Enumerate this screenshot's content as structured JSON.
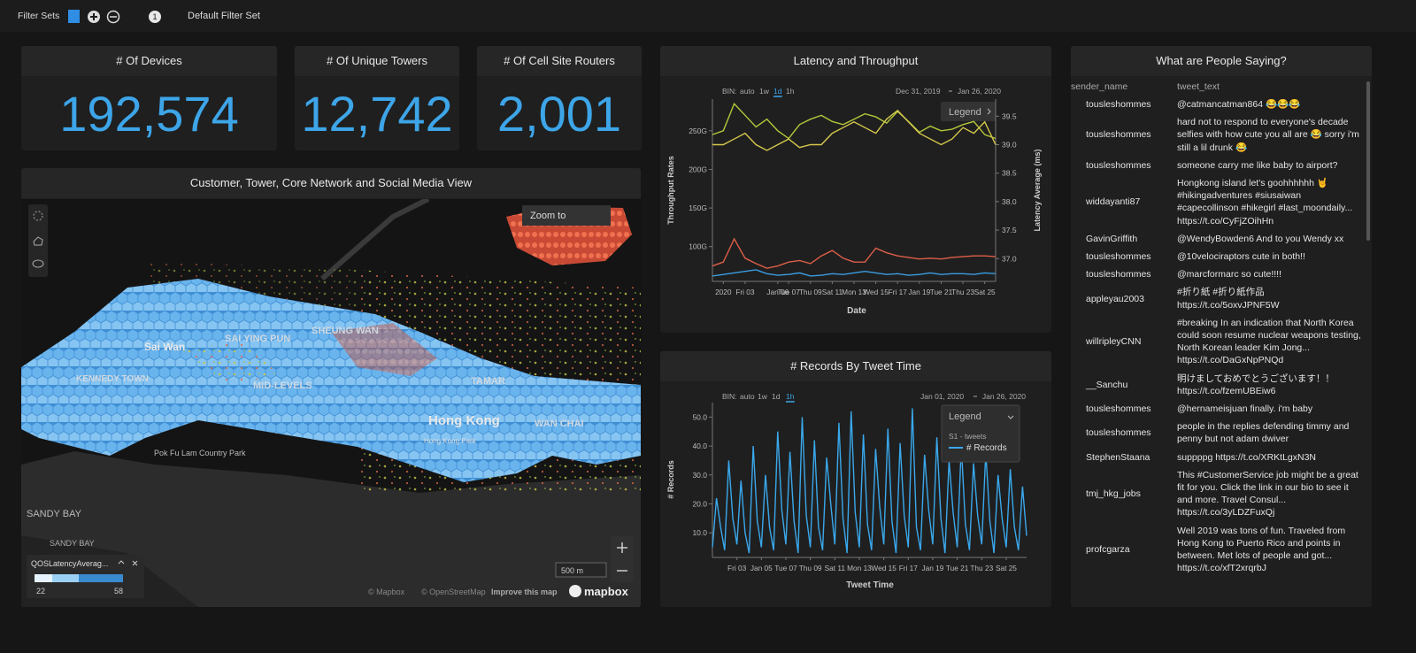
{
  "filter_bar": {
    "label": "Filter Sets",
    "badge": "1",
    "filter_set": "Default Filter Set"
  },
  "kpis": [
    {
      "title": "# Of Devices",
      "value": "192,574"
    },
    {
      "title": "# Of Unique Towers",
      "value": "12,742"
    },
    {
      "title": "# Of Cell Site Routers",
      "value": "2,001"
    }
  ],
  "map": {
    "title": "Customer, Tower, Core Network and Social Media View",
    "zoom_button": "Zoom to",
    "places": [
      "Sai Wan",
      "SAI YING PUN",
      "SHEUNG WAN",
      "MID-LEVELS",
      "Hong Kong",
      "WAN CHAI",
      "TAMAR",
      "KENNEDY TOWN",
      "SANDY BAY",
      "SANDY BAY",
      "Pok Fu Lam Country Park",
      "Hong Kong Park"
    ],
    "legend": {
      "title": "QOSLatencyAverag...",
      "min": "22",
      "max": "58"
    },
    "scale": "500 m",
    "attribution": [
      "© Mapbox",
      "© OpenStreetMap",
      "Improve this map"
    ],
    "logo": "mapbox"
  },
  "latency_chart": {
    "type": "line",
    "title": "Latency and Throughput",
    "bin_label": "BIN:",
    "bins": [
      "auto",
      "1w",
      "1d",
      "1h"
    ],
    "active_bin": "1d",
    "date_range": [
      "Dec 31, 2019",
      "Jan 26, 2020"
    ],
    "legend_title": "Legend",
    "x_label": "Date",
    "y_label": "Throughput Rates",
    "y2_label": "Latency Average (ms)",
    "categories": [
      null,
      "2020",
      null,
      "Fri 03",
      null,
      null,
      "Jan 06",
      "Tue 07",
      null,
      "Thu 09",
      null,
      "Sat 11",
      null,
      "Mon 13",
      null,
      "Wed 15",
      null,
      "Fri 17",
      null,
      "Jan 19",
      null,
      "Tue 21",
      null,
      "Thu 23",
      null,
      "Sat 25",
      null
    ],
    "ylim": [
      55,
      291
    ],
    "yticks": [
      {
        "value": 100,
        "label": "100G"
      },
      {
        "value": 150,
        "label": "150G"
      },
      {
        "value": 200,
        "label": "200G"
      },
      {
        "value": 250,
        "label": "250G"
      }
    ],
    "y2lim": [
      36.6,
      39.8
    ],
    "y2ticks": [
      {
        "value": 37,
        "label": "37.0"
      },
      37.5,
      {
        "value": 38,
        "label": "38.0"
      },
      38.5,
      {
        "value": 39,
        "label": "39.0"
      },
      39.5
    ],
    "series": [
      {
        "color": "#b3c83a",
        "values": [
          245,
          250,
          285,
          270,
          255,
          265,
          250,
          240,
          258,
          265,
          270,
          262,
          258,
          265,
          272,
          268,
          260,
          275,
          262,
          248,
          256,
          250,
          252,
          258,
          262,
          245,
          240
        ]
      },
      {
        "color": "#d6c84c",
        "axis": "y2",
        "values": [
          39.0,
          39.0,
          39.1,
          39.2,
          39.0,
          38.9,
          39.0,
          39.1,
          38.95,
          39.0,
          39.0,
          39.2,
          39.3,
          39.4,
          39.3,
          39.2,
          39.45,
          39.6,
          39.4,
          39.2,
          39.1,
          39.0,
          39.1,
          39.3,
          39.2,
          39.4,
          39.0
        ]
      },
      {
        "color": "#de5f48",
        "values": [
          75,
          80,
          110,
          85,
          78,
          72,
          75,
          80,
          82,
          78,
          88,
          95,
          85,
          80,
          80,
          98,
          92,
          88,
          86,
          84,
          85,
          84,
          86,
          87,
          88,
          88,
          87
        ]
      },
      {
        "color": "#3a9de0",
        "values": [
          62,
          64,
          66,
          68,
          70,
          65,
          63,
          64,
          66,
          62,
          63,
          65,
          64,
          66,
          68,
          66,
          64,
          65,
          63,
          64,
          66,
          64,
          65,
          65,
          64,
          66,
          65
        ]
      }
    ]
  },
  "records_chart": {
    "type": "line",
    "title": "# Records By Tweet Time",
    "bin_label": "BIN:",
    "bins": [
      "auto",
      "1w",
      "1d",
      "1h"
    ],
    "active_bin": "1h",
    "date_range": [
      "Jan 01, 2020",
      "Jan 26, 2020"
    ],
    "legend_title": "Legend",
    "legend_group": "S1 - tweets",
    "x_label": "Tweet Time",
    "y_label": "# Records",
    "categories": [
      null,
      null,
      null,
      null,
      null,
      null,
      "Fri 03",
      null,
      null,
      null,
      null,
      null,
      "Jan 05",
      null,
      null,
      null,
      null,
      null,
      "Tue 07",
      null,
      null,
      null,
      null,
      null,
      "Thu 09",
      null,
      null,
      null,
      null,
      null,
      "Sat 11",
      null,
      null,
      null,
      null,
      null,
      "Mon 13",
      null,
      null,
      null,
      null,
      null,
      "Wed 15",
      null,
      null,
      null,
      null,
      null,
      "Fri 17",
      null,
      null,
      null,
      null,
      null,
      "Jan 19",
      null,
      null,
      null,
      null,
      null,
      "Tue 21",
      null,
      null,
      null,
      null,
      null,
      "Thu 23",
      null,
      null,
      null,
      null,
      null,
      "Sat 25",
      null,
      null,
      null,
      null,
      null
    ],
    "ylim": [
      1.5,
      55
    ],
    "yticks": [
      {
        "value": 10,
        "label": "10.0"
      },
      {
        "value": 20,
        "label": "20.0"
      },
      {
        "value": 30,
        "label": "30.0"
      },
      {
        "value": 40,
        "label": "40.0"
      },
      {
        "value": 50,
        "label": "50.0"
      }
    ],
    "series": [
      {
        "name": "# Records",
        "color": "#3aa8ec",
        "values": [
          5,
          22,
          12,
          4,
          35,
          15,
          6,
          28,
          10,
          3,
          40,
          14,
          5,
          30,
          12,
          4,
          45,
          18,
          6,
          38,
          14,
          3,
          50,
          16,
          5,
          42,
          12,
          4,
          36,
          20,
          6,
          48,
          15,
          3,
          52,
          17,
          5,
          44,
          13,
          4,
          39,
          19,
          6,
          46,
          14,
          3,
          41,
          16,
          5,
          53,
          12,
          4,
          37,
          18,
          6,
          43,
          15,
          3,
          35,
          17,
          5,
          40,
          13,
          4,
          34,
          16,
          6,
          38,
          14,
          3,
          30,
          15,
          5,
          32,
          12,
          4,
          26,
          9
        ]
      }
    ]
  },
  "tweets": {
    "title": "What are People Saying?",
    "columns": [
      "sender_name",
      "tweet_text"
    ],
    "rows": [
      [
        "tousleshommes",
        "@catmancatman864 😂😂😂"
      ],
      [
        "tousleshommes",
        "hard not to respond to everyone's decade selfies with how cute you all are 😂 sorry i'm still a lil drunk 😂"
      ],
      [
        "tousleshommes",
        "someone carry me like baby to airport?"
      ],
      [
        "widdayanti87",
        "Hongkong island let's goohhhhhh 🤘 #hikingadventures #siusaiwan #capecollinson #hikegirl #last_moondaily... https://t.co/CyFjZOihHn"
      ],
      [
        "GavinGriffith",
        "@WendyBowden6 And to you Wendy xx"
      ],
      [
        "tousleshommes",
        "@10velociraptors cute in both!!"
      ],
      [
        "tousleshommes",
        "@marcformarc so cute!!!!"
      ],
      [
        "appleyau2003",
        "#折り紙 #折り紙作品 https://t.co/5oxvJPNF5W"
      ],
      [
        "willripleyCNN",
        "#breaking In an indication that North Korea could soon resume nuclear weapons testing, North Korean leader Kim Jong... https://t.co/DaGxNpPNQd"
      ],
      [
        "__Sanchu",
        "明けましておめでとうございます！！ https://t.co/fzemUBEiw6"
      ],
      [
        "tousleshommes",
        "@hernameisjuan finally. i'm baby"
      ],
      [
        "tousleshommes",
        "people in the replies defending timmy and penny but not adam dwiver"
      ],
      [
        "StephenStaana",
        "suppppg https://t.co/XRKtLgxN3N"
      ],
      [
        "tmj_hkg_jobs",
        "This #CustomerService job might be a great fit for you. Click the link in our bio to see it and more. Travel Consul... https://t.co/3yLDZFuxQj"
      ],
      [
        "profcgarza",
        "Well 2019 was tons of fun. Traveled from Hong Kong to Puerto Rico and points in between. Met lots of people and got... https://t.co/xfT2xrqrbJ"
      ]
    ]
  }
}
